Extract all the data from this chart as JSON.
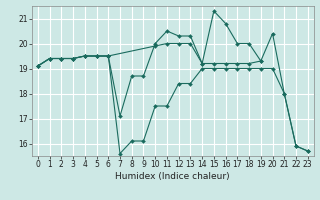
{
  "xlabel": "Humidex (Indice chaleur)",
  "background_color": "#cde8e5",
  "grid_color": "#ffffff",
  "line_color": "#1a6b5e",
  "ylim": [
    15.5,
    21.5
  ],
  "yticks": [
    16,
    17,
    18,
    19,
    20,
    21
  ],
  "xlim": [
    -0.5,
    23.5
  ],
  "xticks": [
    0,
    1,
    2,
    3,
    4,
    5,
    6,
    7,
    8,
    9,
    10,
    11,
    12,
    13,
    14,
    15,
    16,
    17,
    18,
    19,
    20,
    21,
    22,
    23
  ],
  "series": [
    {
      "x": [
        0,
        1,
        2,
        3,
        4,
        5,
        6,
        7,
        8,
        9,
        10,
        11,
        12,
        13,
        14,
        15,
        16,
        17,
        18,
        19,
        20,
        21,
        22,
        23
      ],
      "y": [
        19.1,
        19.4,
        19.4,
        19.4,
        19.5,
        19.5,
        19.5,
        17.1,
        18.7,
        18.7,
        20.0,
        20.5,
        20.3,
        20.3,
        19.2,
        21.3,
        20.8,
        20.0,
        20.0,
        19.3,
        20.4,
        18.0,
        15.9,
        15.7
      ]
    },
    {
      "x": [
        0,
        1,
        2,
        3,
        4,
        5,
        6,
        10,
        11,
        12,
        13,
        14,
        15,
        16,
        17,
        18,
        19
      ],
      "y": [
        19.1,
        19.4,
        19.4,
        19.4,
        19.5,
        19.5,
        19.5,
        19.9,
        20.0,
        20.0,
        20.0,
        19.2,
        19.2,
        19.2,
        19.2,
        19.2,
        19.3
      ]
    },
    {
      "x": [
        0,
        1,
        2,
        3,
        4,
        5,
        6,
        7,
        8,
        9,
        10,
        11,
        12,
        13,
        14,
        15,
        16,
        17,
        18,
        19,
        20,
        21,
        22,
        23
      ],
      "y": [
        19.1,
        19.4,
        19.4,
        19.4,
        19.5,
        19.5,
        19.5,
        15.6,
        16.1,
        16.1,
        17.5,
        17.5,
        18.4,
        18.4,
        19.0,
        19.0,
        19.0,
        19.0,
        19.0,
        19.0,
        19.0,
        18.0,
        15.9,
        15.7
      ]
    }
  ]
}
